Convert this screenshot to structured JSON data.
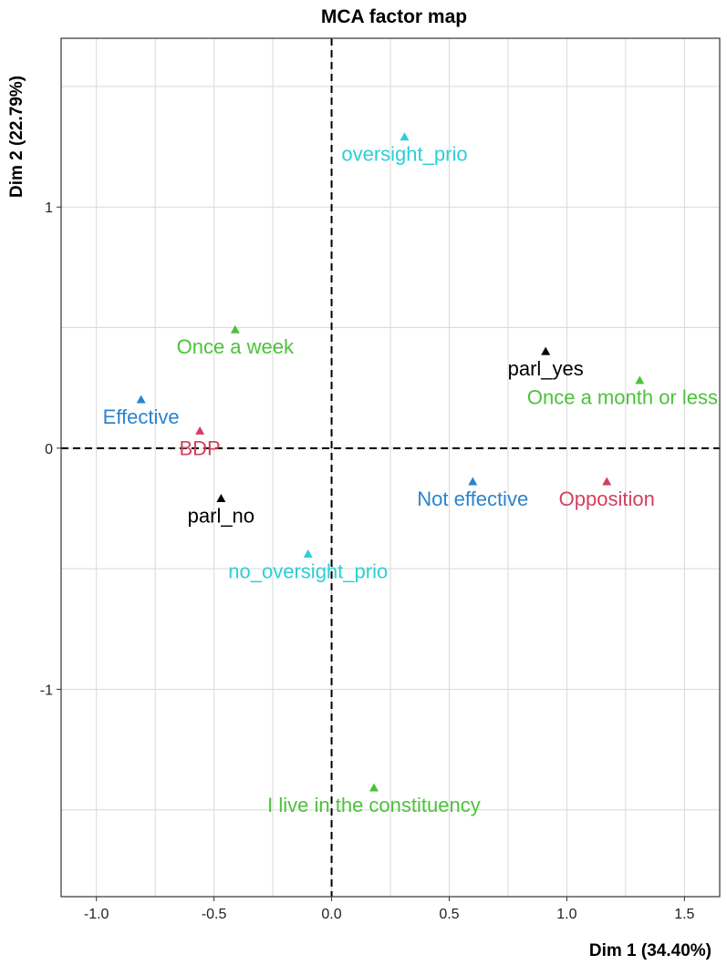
{
  "colors": {
    "background": "#ffffff",
    "grid": "#d9d9d9",
    "frame": "#333333",
    "reference_line": "#000000"
  },
  "chart_data": {
    "type": "scatter",
    "title": "MCA factor map",
    "xlabel": "Dim 1 (34.40%)",
    "ylabel": "Dim 2 (22.79%)",
    "xlim": [
      -1.15,
      1.65
    ],
    "ylim": [
      -1.86,
      1.7
    ],
    "x_ticks": [
      {
        "value": -1.0,
        "label": "-1.0"
      },
      {
        "value": -0.5,
        "label": "-0.5"
      },
      {
        "value": 0.0,
        "label": "0.0"
      },
      {
        "value": 0.5,
        "label": "0.5"
      },
      {
        "value": 1.0,
        "label": "1.0"
      },
      {
        "value": 1.5,
        "label": "1.5"
      }
    ],
    "y_ticks": [
      {
        "value": -1,
        "label": "-1"
      },
      {
        "value": 0,
        "label": "0"
      },
      {
        "value": 1,
        "label": "1"
      }
    ],
    "grid": true,
    "reference_lines": {
      "x": 0,
      "y": 0,
      "style": "dashed"
    },
    "marker": "triangle",
    "points": [
      {
        "label": "oversight_prio",
        "x": 0.31,
        "y": 1.29,
        "color": "#2bcfd6"
      },
      {
        "label": "no_oversight_prio",
        "x": -0.1,
        "y": -0.44,
        "color": "#2bcfd6"
      },
      {
        "label": "parl_yes",
        "x": 0.91,
        "y": 0.4,
        "color": "#000000"
      },
      {
        "label": "parl_no",
        "x": -0.47,
        "y": -0.21,
        "color": "#000000"
      },
      {
        "label": "Once a week",
        "x": -0.41,
        "y": 0.49,
        "color": "#4cc23a"
      },
      {
        "label": "Once a month or less",
        "x": 1.31,
        "y": 0.28,
        "color": "#4cc23a"
      },
      {
        "label": "I live in the constituency",
        "x": 0.18,
        "y": -1.41,
        "color": "#4cc23a"
      },
      {
        "label": "Effective",
        "x": -0.81,
        "y": 0.2,
        "color": "#2a83cf"
      },
      {
        "label": "Not effective",
        "x": 0.6,
        "y": -0.14,
        "color": "#2a83cf"
      },
      {
        "label": "BDP",
        "x": -0.56,
        "y": 0.07,
        "color": "#d43f5e"
      },
      {
        "label": "Opposition",
        "x": 1.17,
        "y": -0.14,
        "color": "#d43f5e"
      }
    ]
  }
}
